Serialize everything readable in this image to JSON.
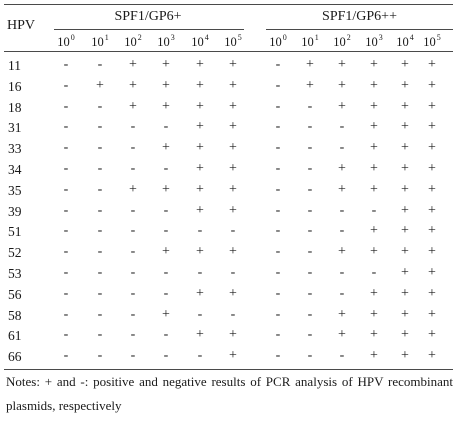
{
  "header": {
    "hpv_label": "HPV",
    "group1": "SPF1/GP6+",
    "group2": "SPF1/GP6++",
    "dilution_base": "10",
    "dilution_exponents": [
      "0",
      "1",
      "2",
      "3",
      "4",
      "5"
    ]
  },
  "rows": [
    {
      "hpv": "11",
      "g1": [
        "-",
        "-",
        "+",
        "+",
        "+",
        "+"
      ],
      "g2": [
        "-",
        "+",
        "+",
        "+",
        "+",
        "+"
      ]
    },
    {
      "hpv": "16",
      "g1": [
        "-",
        "+",
        "+",
        "+",
        "+",
        "+"
      ],
      "g2": [
        "-",
        "+",
        "+",
        "+",
        "+",
        "+"
      ]
    },
    {
      "hpv": "18",
      "g1": [
        "-",
        "-",
        "+",
        "+",
        "+",
        "+"
      ],
      "g2": [
        "-",
        "-",
        "+",
        "+",
        "+",
        "+"
      ]
    },
    {
      "hpv": "31",
      "g1": [
        "-",
        "-",
        "-",
        "-",
        "+",
        "+"
      ],
      "g2": [
        "-",
        "-",
        "-",
        "+",
        "+",
        "+"
      ]
    },
    {
      "hpv": "33",
      "g1": [
        "-",
        "-",
        "-",
        "+",
        "+",
        "+"
      ],
      "g2": [
        "-",
        "-",
        "-",
        "+",
        "+",
        "+"
      ]
    },
    {
      "hpv": "34",
      "g1": [
        "-",
        "-",
        "-",
        "-",
        "+",
        "+"
      ],
      "g2": [
        "-",
        "-",
        "+",
        "+",
        "+",
        "+"
      ]
    },
    {
      "hpv": "35",
      "g1": [
        "-",
        "-",
        "+",
        "+",
        "+",
        "+"
      ],
      "g2": [
        "-",
        "-",
        "+",
        "+",
        "+",
        "+"
      ]
    },
    {
      "hpv": "39",
      "g1": [
        "-",
        "-",
        "-",
        "-",
        "+",
        "+"
      ],
      "g2": [
        "-",
        "-",
        "-",
        "-",
        "+",
        "+"
      ]
    },
    {
      "hpv": "51",
      "g1": [
        "-",
        "-",
        "-",
        "-",
        "-",
        "-"
      ],
      "g2": [
        "-",
        "-",
        "-",
        "+",
        "+",
        "+"
      ]
    },
    {
      "hpv": "52",
      "g1": [
        "-",
        "-",
        "-",
        "+",
        "+",
        "+"
      ],
      "g2": [
        "-",
        "-",
        "+",
        "+",
        "+",
        "+"
      ]
    },
    {
      "hpv": "53",
      "g1": [
        "-",
        "-",
        "-",
        "-",
        "-",
        "-"
      ],
      "g2": [
        "-",
        "-",
        "-",
        "-",
        "+",
        "+"
      ]
    },
    {
      "hpv": "56",
      "g1": [
        "-",
        "-",
        "-",
        "-",
        "+",
        "+"
      ],
      "g2": [
        "-",
        "-",
        "-",
        "+",
        "+",
        "+"
      ]
    },
    {
      "hpv": "58",
      "g1": [
        "-",
        "-",
        "-",
        "+",
        "-",
        "-"
      ],
      "g2": [
        "-",
        "-",
        "+",
        "+",
        "+",
        "+"
      ]
    },
    {
      "hpv": "61",
      "g1": [
        "-",
        "-",
        "-",
        "-",
        "+",
        "+"
      ],
      "g2": [
        "-",
        "-",
        "+",
        "+",
        "+",
        "+"
      ]
    },
    {
      "hpv": "66",
      "g1": [
        "-",
        "-",
        "-",
        "-",
        "-",
        "+"
      ],
      "g2": [
        "-",
        "-",
        "-",
        "+",
        "+",
        "+"
      ]
    }
  ],
  "notes": "Notes: + and -: positive and negative results of PCR analysis of HPV recombinant plasmids, respectively"
}
